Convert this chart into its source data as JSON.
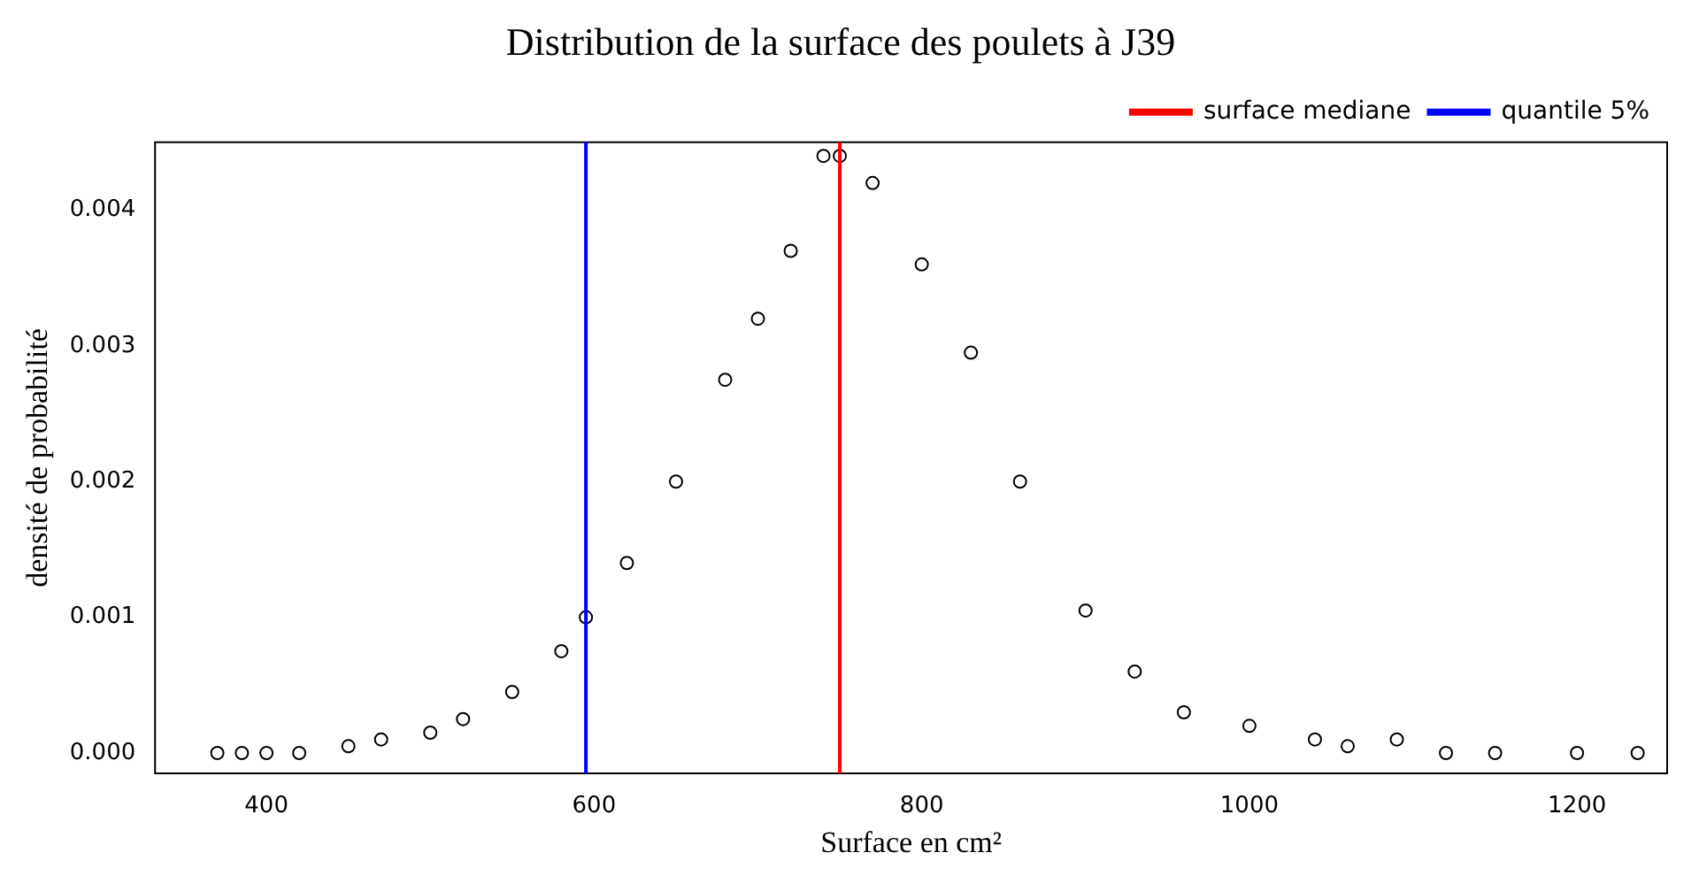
{
  "chart_data": {
    "type": "scatter",
    "title": "Distribution de la surface des poulets à J39",
    "xlabel": "Surface en cm²",
    "ylabel": "densité de probabilité",
    "series": [
      {
        "color": "#000000",
        "x": [
          370,
          385,
          400,
          420,
          450,
          470,
          500,
          520,
          550,
          580,
          595,
          620,
          650,
          680,
          700,
          720,
          740,
          750,
          770,
          800,
          830,
          860,
          900,
          930,
          960,
          1000,
          1040,
          1060,
          1090,
          1120,
          1150,
          1200,
          1237
        ],
        "values": [
          0,
          0,
          0,
          0,
          5e-05,
          0.0001,
          0.00015,
          0.00025,
          0.00045,
          0.00075,
          0.001,
          0.0014,
          0.002,
          0.00275,
          0.0032,
          0.0037,
          0.0044,
          0.0044,
          0.0042,
          0.0036,
          0.00295,
          0.002,
          0.00105,
          0.0006,
          0.0003,
          0.0002,
          0.0001,
          5e-05,
          0.0001,
          0,
          0,
          0,
          0
        ]
      }
    ],
    "xlim": [
      332,
      1255
    ],
    "xticks": [
      400,
      600,
      800,
      1000,
      1200
    ],
    "ylim": [
      -0.00015,
      0.0045
    ],
    "yticks": [
      {
        "value": 0,
        "label": "0.000"
      },
      {
        "value": 0.001,
        "label": "0.001"
      },
      {
        "value": 0.002,
        "label": "0.002"
      },
      {
        "value": 0.003,
        "label": "0.003"
      },
      {
        "value": 0.004,
        "label": "0.004"
      }
    ],
    "ref_lines": [
      {
        "axis": "x",
        "value": 750,
        "label": "surface mediane",
        "color": "#ff0000"
      },
      {
        "axis": "x",
        "value": 595,
        "label": "quantile 5%",
        "color": "#0000ff"
      }
    ],
    "marker": "circle",
    "grid": false,
    "legend": "top right"
  }
}
